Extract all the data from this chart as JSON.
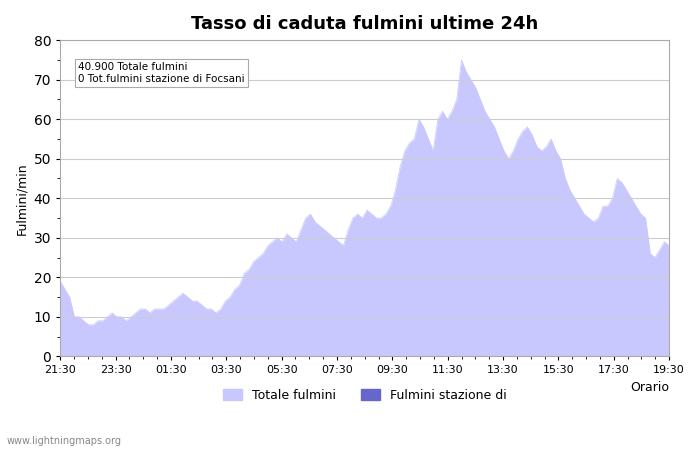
{
  "title": "Tasso di caduta fulmini ultime 24h",
  "xlabel": "Orario",
  "ylabel": "Fulmini/min",
  "annotation_line1": "40.900 Totale fulmini",
  "annotation_line2": "0 Tot.fulmini stazione di Focsani",
  "legend_label1": "Totale fulmini",
  "legend_label2": "Fulmini stazione di",
  "watermark": "www.lightningmaps.org",
  "ylim": [
    0,
    80
  ],
  "fill_color": "#c8c8ff",
  "fill_color2": "#6666cc",
  "x_ticks": [
    "21:30",
    "23:30",
    "01:30",
    "03:30",
    "05:30",
    "07:30",
    "09:30",
    "11:30",
    "13:30",
    "15:30",
    "17:30",
    "19:30"
  ],
  "y_values": [
    19,
    17,
    15,
    10,
    10,
    9,
    8,
    8,
    9,
    9,
    10,
    11,
    10,
    10,
    9,
    10,
    11,
    12,
    12,
    11,
    12,
    12,
    12,
    13,
    14,
    15,
    16,
    15,
    14,
    14,
    13,
    12,
    12,
    11,
    12,
    14,
    15,
    17,
    18,
    21,
    22,
    24,
    25,
    26,
    28,
    29,
    30,
    29,
    31,
    30,
    29,
    32,
    35,
    36,
    34,
    33,
    32,
    31,
    30,
    29,
    28,
    32,
    35,
    36,
    35,
    37,
    36,
    35,
    35,
    36,
    38,
    42,
    48,
    52,
    54,
    55,
    60,
    58,
    55,
    52,
    60,
    62,
    60,
    62,
    65,
    75,
    72,
    70,
    68,
    65,
    62,
    60,
    58,
    55,
    52,
    50,
    52,
    55,
    57,
    58,
    56,
    53,
    52,
    53,
    55,
    52,
    50,
    45,
    42,
    40,
    38,
    36,
    35,
    34,
    35,
    38,
    38,
    40,
    45,
    44,
    42,
    40,
    38,
    36,
    35,
    26,
    25,
    27,
    29,
    28
  ],
  "background_color": "#ffffff",
  "grid_color": "#cccccc",
  "title_fontsize": 13,
  "label_fontsize": 9,
  "tick_fontsize": 8
}
